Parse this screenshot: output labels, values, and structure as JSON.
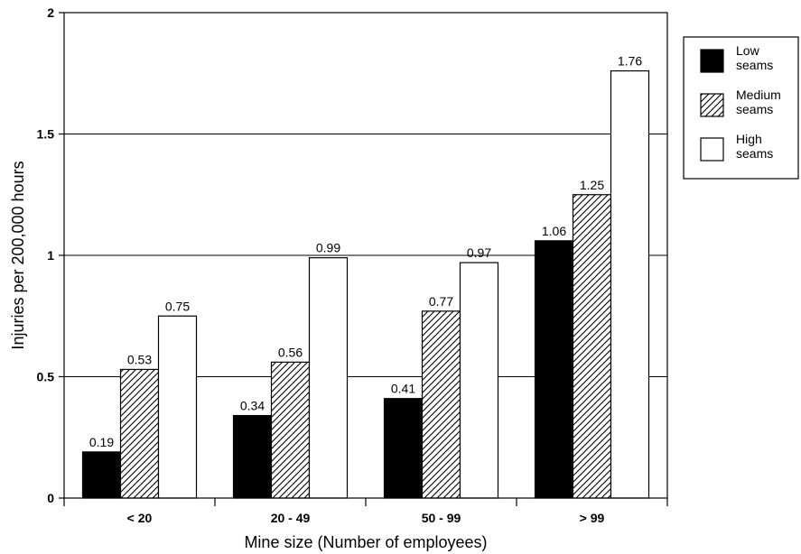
{
  "chart_data": {
    "type": "bar",
    "xlabel": "Mine size (Number of employees)",
    "ylabel": "Injuries per 200,000 hours",
    "categories": [
      "< 20",
      "20 - 49",
      "50 - 99",
      "> 99"
    ],
    "series": [
      {
        "name": "Low seams",
        "legend_lines": [
          "Low",
          "seams"
        ],
        "values": [
          0.19,
          0.34,
          0.41,
          1.06
        ],
        "fill": "solid-black"
      },
      {
        "name": "Medium seams",
        "legend_lines": [
          "Medium",
          "seams"
        ],
        "values": [
          0.53,
          0.56,
          0.77,
          1.25
        ],
        "fill": "diagonal-hatch"
      },
      {
        "name": "High seams",
        "legend_lines": [
          "High",
          "seams"
        ],
        "values": [
          0.75,
          0.99,
          0.97,
          1.76
        ],
        "fill": "white"
      }
    ],
    "ylim": [
      0,
      2
    ],
    "yticks": [
      "0",
      "0.5",
      "1",
      "1.5",
      "2"
    ],
    "grid": "horizontal",
    "legend_position": "right"
  },
  "colors": {
    "low": "#000000",
    "high": "#ffffff",
    "axis": "#000000",
    "grid": "#000000"
  }
}
